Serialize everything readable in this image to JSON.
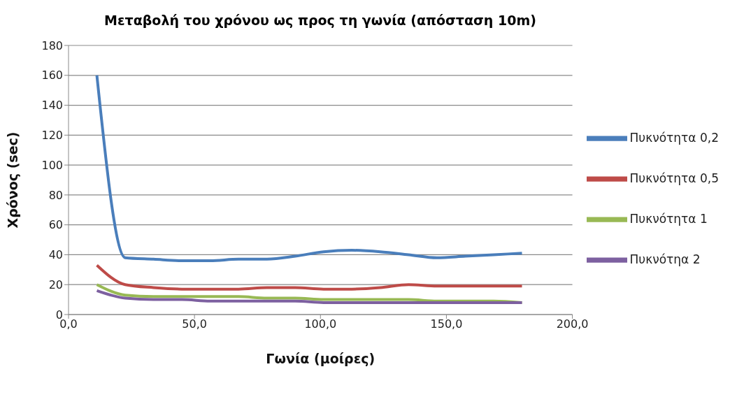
{
  "chart_data": {
    "type": "line",
    "title": "Μεταβολή του χρόνου ως προς τη γωνία (απόσταση 10m)",
    "xlabel": "Γωνία (μοίρες)",
    "ylabel": "Χρόνος (sec)",
    "x": [
      11.25,
      22.5,
      33.75,
      45,
      56.25,
      67.5,
      78.75,
      90,
      101.25,
      112.5,
      123.75,
      135,
      146.25,
      157.5,
      168.75,
      180
    ],
    "series": [
      {
        "name": "Πυκνότητα 0,2",
        "color": "#4a7ebb",
        "values": [
          160,
          38,
          37,
          36,
          36,
          37,
          37,
          39,
          42,
          43,
          42,
          40,
          38,
          39,
          40,
          41
        ]
      },
      {
        "name": "Πυκνότητα 0,5",
        "color": "#be4b48",
        "values": [
          33,
          20,
          18,
          17,
          17,
          17,
          18,
          18,
          17,
          17,
          18,
          20,
          19,
          19,
          19,
          19
        ]
      },
      {
        "name": "Πυκνότητα 1",
        "color": "#98b954",
        "values": [
          20,
          13,
          12,
          12,
          12,
          12,
          11,
          11,
          10,
          10,
          10,
          10,
          9,
          9,
          9,
          8
        ]
      },
      {
        "name": "Πυκνότηα 2",
        "color": "#7d60a0",
        "values": [
          16,
          11,
          10,
          10,
          9,
          9,
          9,
          9,
          8,
          8,
          8,
          8,
          8,
          8,
          8,
          8
        ]
      }
    ],
    "xlim": [
      0,
      200
    ],
    "xticks": [
      {
        "value": 0,
        "label": "0,0"
      },
      {
        "value": 50,
        "label": "50,0"
      },
      {
        "value": 100,
        "label": "100,0"
      },
      {
        "value": 150,
        "label": "150,0"
      },
      {
        "value": 200,
        "label": "200,0"
      }
    ],
    "ylim": [
      0,
      180
    ],
    "yticks": [
      0,
      20,
      40,
      60,
      80,
      100,
      120,
      140,
      160,
      180
    ],
    "grid": "y",
    "legend": "right",
    "marker": "none",
    "line_style": "solid"
  }
}
